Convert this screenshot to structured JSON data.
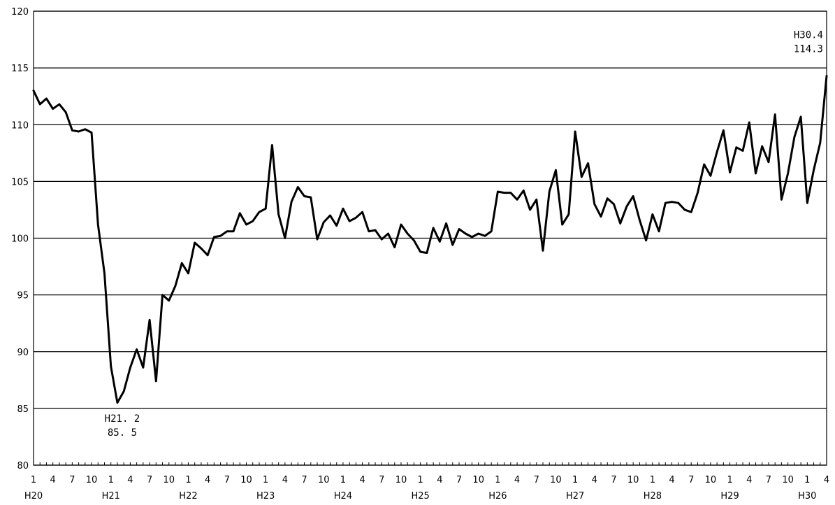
{
  "chart_data": {
    "type": "line",
    "title": "",
    "xlabel": "",
    "ylabel": "",
    "ylim": [
      80,
      120
    ],
    "yticks": [
      "80",
      "85",
      "90",
      "95",
      "100",
      "105",
      "110",
      "115",
      "120"
    ],
    "grid": "horizontal",
    "legend": "none",
    "line_color": "#000000",
    "x_month_ticks": [
      "1",
      "4",
      "7",
      "10",
      "1",
      "4",
      "7",
      "10",
      "1",
      "4",
      "7",
      "10",
      "1",
      "4",
      "7",
      "10",
      "1",
      "4",
      "7",
      "10",
      "1",
      "4",
      "7",
      "10",
      "1",
      "4",
      "7",
      "10",
      "1",
      "4",
      "7",
      "10",
      "1",
      "4",
      "7",
      "10",
      "1",
      "4",
      "7",
      "10",
      "1",
      "4"
    ],
    "x_year_labels": [
      "H20",
      "H21",
      "H22",
      "H23",
      "H24",
      "H25",
      "H26",
      "H27",
      "H28",
      "H29",
      "H30"
    ],
    "series": [
      {
        "name": "",
        "start": "H20.1",
        "end": "H30.4",
        "values": [
          113.0,
          111.8,
          112.3,
          111.4,
          111.8,
          111.1,
          109.5,
          109.4,
          109.6,
          109.3,
          101.2,
          96.9,
          88.7,
          85.5,
          86.5,
          88.6,
          90.2,
          88.6,
          92.8,
          87.4,
          95.0,
          94.5,
          95.8,
          97.8,
          96.9,
          99.6,
          99.1,
          98.5,
          100.1,
          100.2,
          100.6,
          100.6,
          102.2,
          101.2,
          101.5,
          102.3,
          102.6,
          108.2,
          102.1,
          100.0,
          103.2,
          104.5,
          103.7,
          103.6,
          99.9,
          101.4,
          102.0,
          101.1,
          102.6,
          101.5,
          101.8,
          102.3,
          100.6,
          100.7,
          99.9,
          100.4,
          99.2,
          101.2,
          100.4,
          99.8,
          98.8,
          98.7,
          100.9,
          99.7,
          101.3,
          99.4,
          100.8,
          100.4,
          100.1,
          100.4,
          100.2,
          100.6,
          104.1,
          104.0,
          104.0,
          103.4,
          104.2,
          102.5,
          103.4,
          98.9,
          104.1,
          106.0,
          101.2,
          102.1,
          109.4,
          105.4,
          106.6,
          103.0,
          101.9,
          103.5,
          103.0,
          101.3,
          102.8,
          103.7,
          101.6,
          99.8,
          102.1,
          100.6,
          103.1,
          103.2,
          103.1,
          102.5,
          102.3,
          104.0,
          106.5,
          105.5,
          107.6,
          109.5,
          105.8,
          108.0,
          107.7,
          110.2,
          105.7,
          108.1,
          106.7,
          110.9,
          103.4,
          105.7,
          108.9,
          110.7,
          103.1,
          106.0,
          108.4,
          114.3
        ]
      }
    ],
    "annotations": [
      {
        "point_index": 13,
        "label": "H21. 2",
        "value_label": "85. 5",
        "position": "below"
      },
      {
        "point_index": 123,
        "label": "H30.4",
        "value_label": "114.3",
        "position": "above-left"
      }
    ]
  }
}
